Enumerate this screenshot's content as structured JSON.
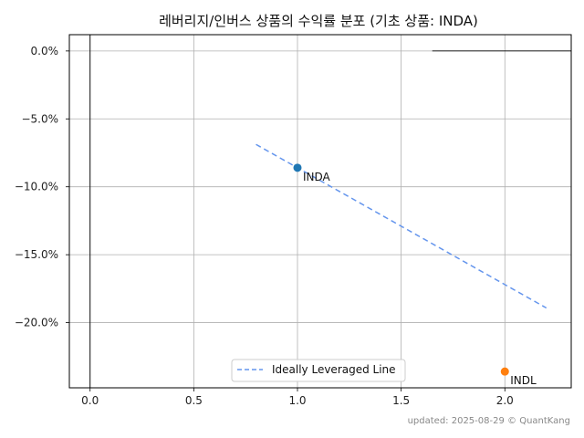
{
  "chart_data": {
    "type": "scatter",
    "title": "레버리지/인버스 상품의 수익률 분포 (기초 상품: INDA)",
    "xlim": [
      -0.1,
      2.32
    ],
    "ylim": [
      -24.8,
      1.2
    ],
    "x_ticks": [
      0.0,
      0.5,
      1.0,
      1.5,
      2.0
    ],
    "x_tick_labels": [
      "0.0",
      "0.5",
      "1.0",
      "1.5",
      "2.0"
    ],
    "y_ticks": [
      0,
      -5,
      -10,
      -15,
      -20
    ],
    "y_tick_labels": [
      "0.0%",
      "−5.0%",
      "−10.0%",
      "−15.0%",
      "−20.0%"
    ],
    "grid": true,
    "points": [
      {
        "label": "INDA",
        "x": 1.0,
        "y": -8.6,
        "color": "#1f77b4"
      },
      {
        "label": "INDL",
        "x": 2.0,
        "y": -23.6,
        "color": "#ff7f0e"
      }
    ],
    "ideal_line": {
      "name": "Ideally Leveraged Line",
      "x": [
        0.8,
        2.2
      ],
      "y": [
        -6.88,
        -18.92
      ],
      "color": "#6495ed",
      "style": "dashed"
    },
    "legend_position": "lower center",
    "footer": "updated: 2025-08-29 © QuantKang"
  }
}
